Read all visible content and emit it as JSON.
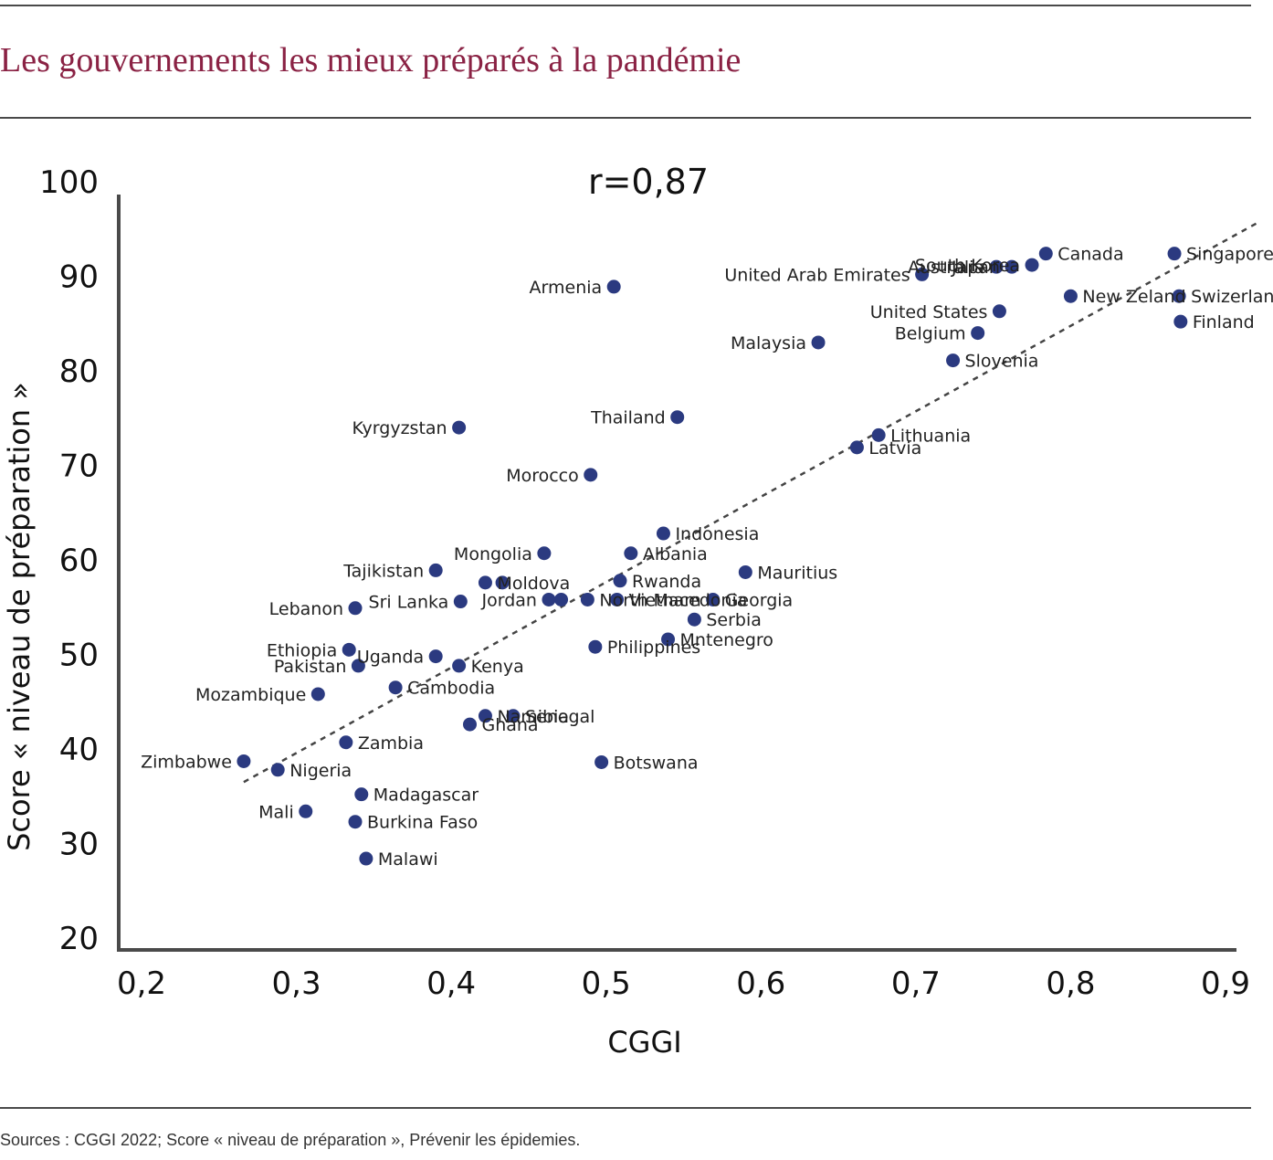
{
  "header": {
    "title": "Les gouvernements les mieux préparés à la pandémie"
  },
  "footer": {
    "source": "Sources : CGGI 2022; Score « niveau de préparation », Prévenir les épidemies."
  },
  "chart_data": {
    "type": "scatter",
    "annotation": "r=0,87",
    "xlabel": "CGGI",
    "ylabel": "Score « niveau de préparation »",
    "xlim": [
      0.2,
      0.9
    ],
    "ylim": [
      20,
      100
    ],
    "xticks": [
      "0,2",
      "0,3",
      "0,4",
      "0,5",
      "0,6",
      "0,7",
      "0,8",
      "0,9"
    ],
    "yticks": [
      "20",
      "30",
      "40",
      "50",
      "60",
      "70",
      "80",
      "90",
      "100"
    ],
    "grid": false,
    "marker_color": "#2b3a80",
    "trendline": {
      "style": "dashed",
      "color": "#444444",
      "from": [
        0.266,
        36.5
      ],
      "to": [
        0.92,
        95.6
      ]
    },
    "points": [
      {
        "x": 0.266,
        "y": 38.7,
        "label": "Zimbabwe",
        "anchor": "end"
      },
      {
        "x": 0.288,
        "y": 37.8,
        "label": "Nigeria",
        "anchor": "start"
      },
      {
        "x": 0.306,
        "y": 33.4,
        "label": "Mali",
        "anchor": "end"
      },
      {
        "x": 0.314,
        "y": 45.8,
        "label": "Mozambique",
        "anchor": "end"
      },
      {
        "x": 0.332,
        "y": 40.7,
        "label": "Zambia",
        "anchor": "start"
      },
      {
        "x": 0.334,
        "y": 50.5,
        "label": "Ethiopia",
        "anchor": "end"
      },
      {
        "x": 0.338,
        "y": 32.3,
        "label": "Burkina Faso",
        "anchor": "start"
      },
      {
        "x": 0.338,
        "y": 54.9,
        "label": "Lebanon",
        "anchor": "end"
      },
      {
        "x": 0.34,
        "y": 48.8,
        "label": "Pakistan",
        "anchor": "end"
      },
      {
        "x": 0.342,
        "y": 35.2,
        "label": "Madagascar",
        "anchor": "start"
      },
      {
        "x": 0.345,
        "y": 28.4,
        "label": "Malawi",
        "anchor": "start"
      },
      {
        "x": 0.364,
        "y": 46.5,
        "label": "Cambodia",
        "anchor": "start"
      },
      {
        "x": 0.39,
        "y": 49.8,
        "label": "Uganda",
        "anchor": "end"
      },
      {
        "x": 0.39,
        "y": 58.9,
        "label": "Tajikistan",
        "anchor": "end"
      },
      {
        "x": 0.406,
        "y": 55.6,
        "label": "Sri Lanka",
        "anchor": "end"
      },
      {
        "x": 0.405,
        "y": 48.8,
        "label": "Kenya",
        "anchor": "start"
      },
      {
        "x": 0.405,
        "y": 74.0,
        "label": "Kyrgyzstan",
        "anchor": "end"
      },
      {
        "x": 0.412,
        "y": 42.6,
        "label": "Ghana",
        "anchor": "start"
      },
      {
        "x": 0.422,
        "y": 43.5,
        "label": "Namibia",
        "anchor": "start"
      },
      {
        "x": 0.422,
        "y": 57.6,
        "label": "Moldova",
        "anchor": "start"
      },
      {
        "x": 0.433,
        "y": 57.6,
        "label": "",
        "anchor": "start"
      },
      {
        "x": 0.44,
        "y": 43.5,
        "label": "Senegal",
        "anchor": "start"
      },
      {
        "x": 0.46,
        "y": 60.7,
        "label": "Mongolia",
        "anchor": "end"
      },
      {
        "x": 0.463,
        "y": 55.8,
        "label": "Jordan",
        "anchor": "end"
      },
      {
        "x": 0.471,
        "y": 55.8,
        "label": "",
        "anchor": "start"
      },
      {
        "x": 0.488,
        "y": 55.8,
        "label": "North Macedonia",
        "anchor": "start"
      },
      {
        "x": 0.49,
        "y": 69.0,
        "label": "Morocco",
        "anchor": "end"
      },
      {
        "x": 0.493,
        "y": 50.8,
        "label": "Philippines",
        "anchor": "start"
      },
      {
        "x": 0.497,
        "y": 38.6,
        "label": "Botswana",
        "anchor": "start"
      },
      {
        "x": 0.505,
        "y": 88.9,
        "label": "Armenia",
        "anchor": "end"
      },
      {
        "x": 0.509,
        "y": 57.8,
        "label": "Rwanda",
        "anchor": "start"
      },
      {
        "x": 0.507,
        "y": 55.8,
        "label": "Vietnam",
        "anchor": "start"
      },
      {
        "x": 0.516,
        "y": 60.7,
        "label": "Albania",
        "anchor": "start"
      },
      {
        "x": 0.537,
        "y": 62.8,
        "label": "Indonesia",
        "anchor": "start"
      },
      {
        "x": 0.54,
        "y": 51.6,
        "label": "Mntenegro",
        "anchor": "start"
      },
      {
        "x": 0.546,
        "y": 75.1,
        "label": "Thailand",
        "anchor": "end"
      },
      {
        "x": 0.557,
        "y": 53.7,
        "label": "Serbia",
        "anchor": "start"
      },
      {
        "x": 0.569,
        "y": 55.8,
        "label": "Georgia",
        "anchor": "start"
      },
      {
        "x": 0.59,
        "y": 58.7,
        "label": "Mauritius",
        "anchor": "start"
      },
      {
        "x": 0.637,
        "y": 83.0,
        "label": "Malaysia",
        "anchor": "end"
      },
      {
        "x": 0.662,
        "y": 71.9,
        "label": "Latvia",
        "anchor": "start"
      },
      {
        "x": 0.676,
        "y": 73.2,
        "label": "Lithuania",
        "anchor": "start"
      },
      {
        "x": 0.704,
        "y": 90.2,
        "label": "United Arab Emirates",
        "anchor": "end"
      },
      {
        "x": 0.724,
        "y": 81.1,
        "label": "Slovenia",
        "anchor": "start"
      },
      {
        "x": 0.74,
        "y": 84.0,
        "label": "Belgium",
        "anchor": "end"
      },
      {
        "x": 0.752,
        "y": 91.0,
        "label": "Australia",
        "anchor": "end"
      },
      {
        "x": 0.754,
        "y": 86.3,
        "label": "United States",
        "anchor": "end"
      },
      {
        "x": 0.762,
        "y": 91.0,
        "label": "Japan",
        "anchor": "end"
      },
      {
        "x": 0.775,
        "y": 91.2,
        "label": "South Korea",
        "anchor": "end"
      },
      {
        "x": 0.784,
        "y": 92.4,
        "label": "Canada",
        "anchor": "start"
      },
      {
        "x": 0.8,
        "y": 87.9,
        "label": "New Zeland",
        "anchor": "start"
      },
      {
        "x": 0.867,
        "y": 92.4,
        "label": "Singapore",
        "anchor": "start"
      },
      {
        "x": 0.87,
        "y": 87.9,
        "label": "Swizerland",
        "anchor": "start"
      },
      {
        "x": 0.871,
        "y": 85.2,
        "label": "Finland",
        "anchor": "start"
      }
    ]
  }
}
